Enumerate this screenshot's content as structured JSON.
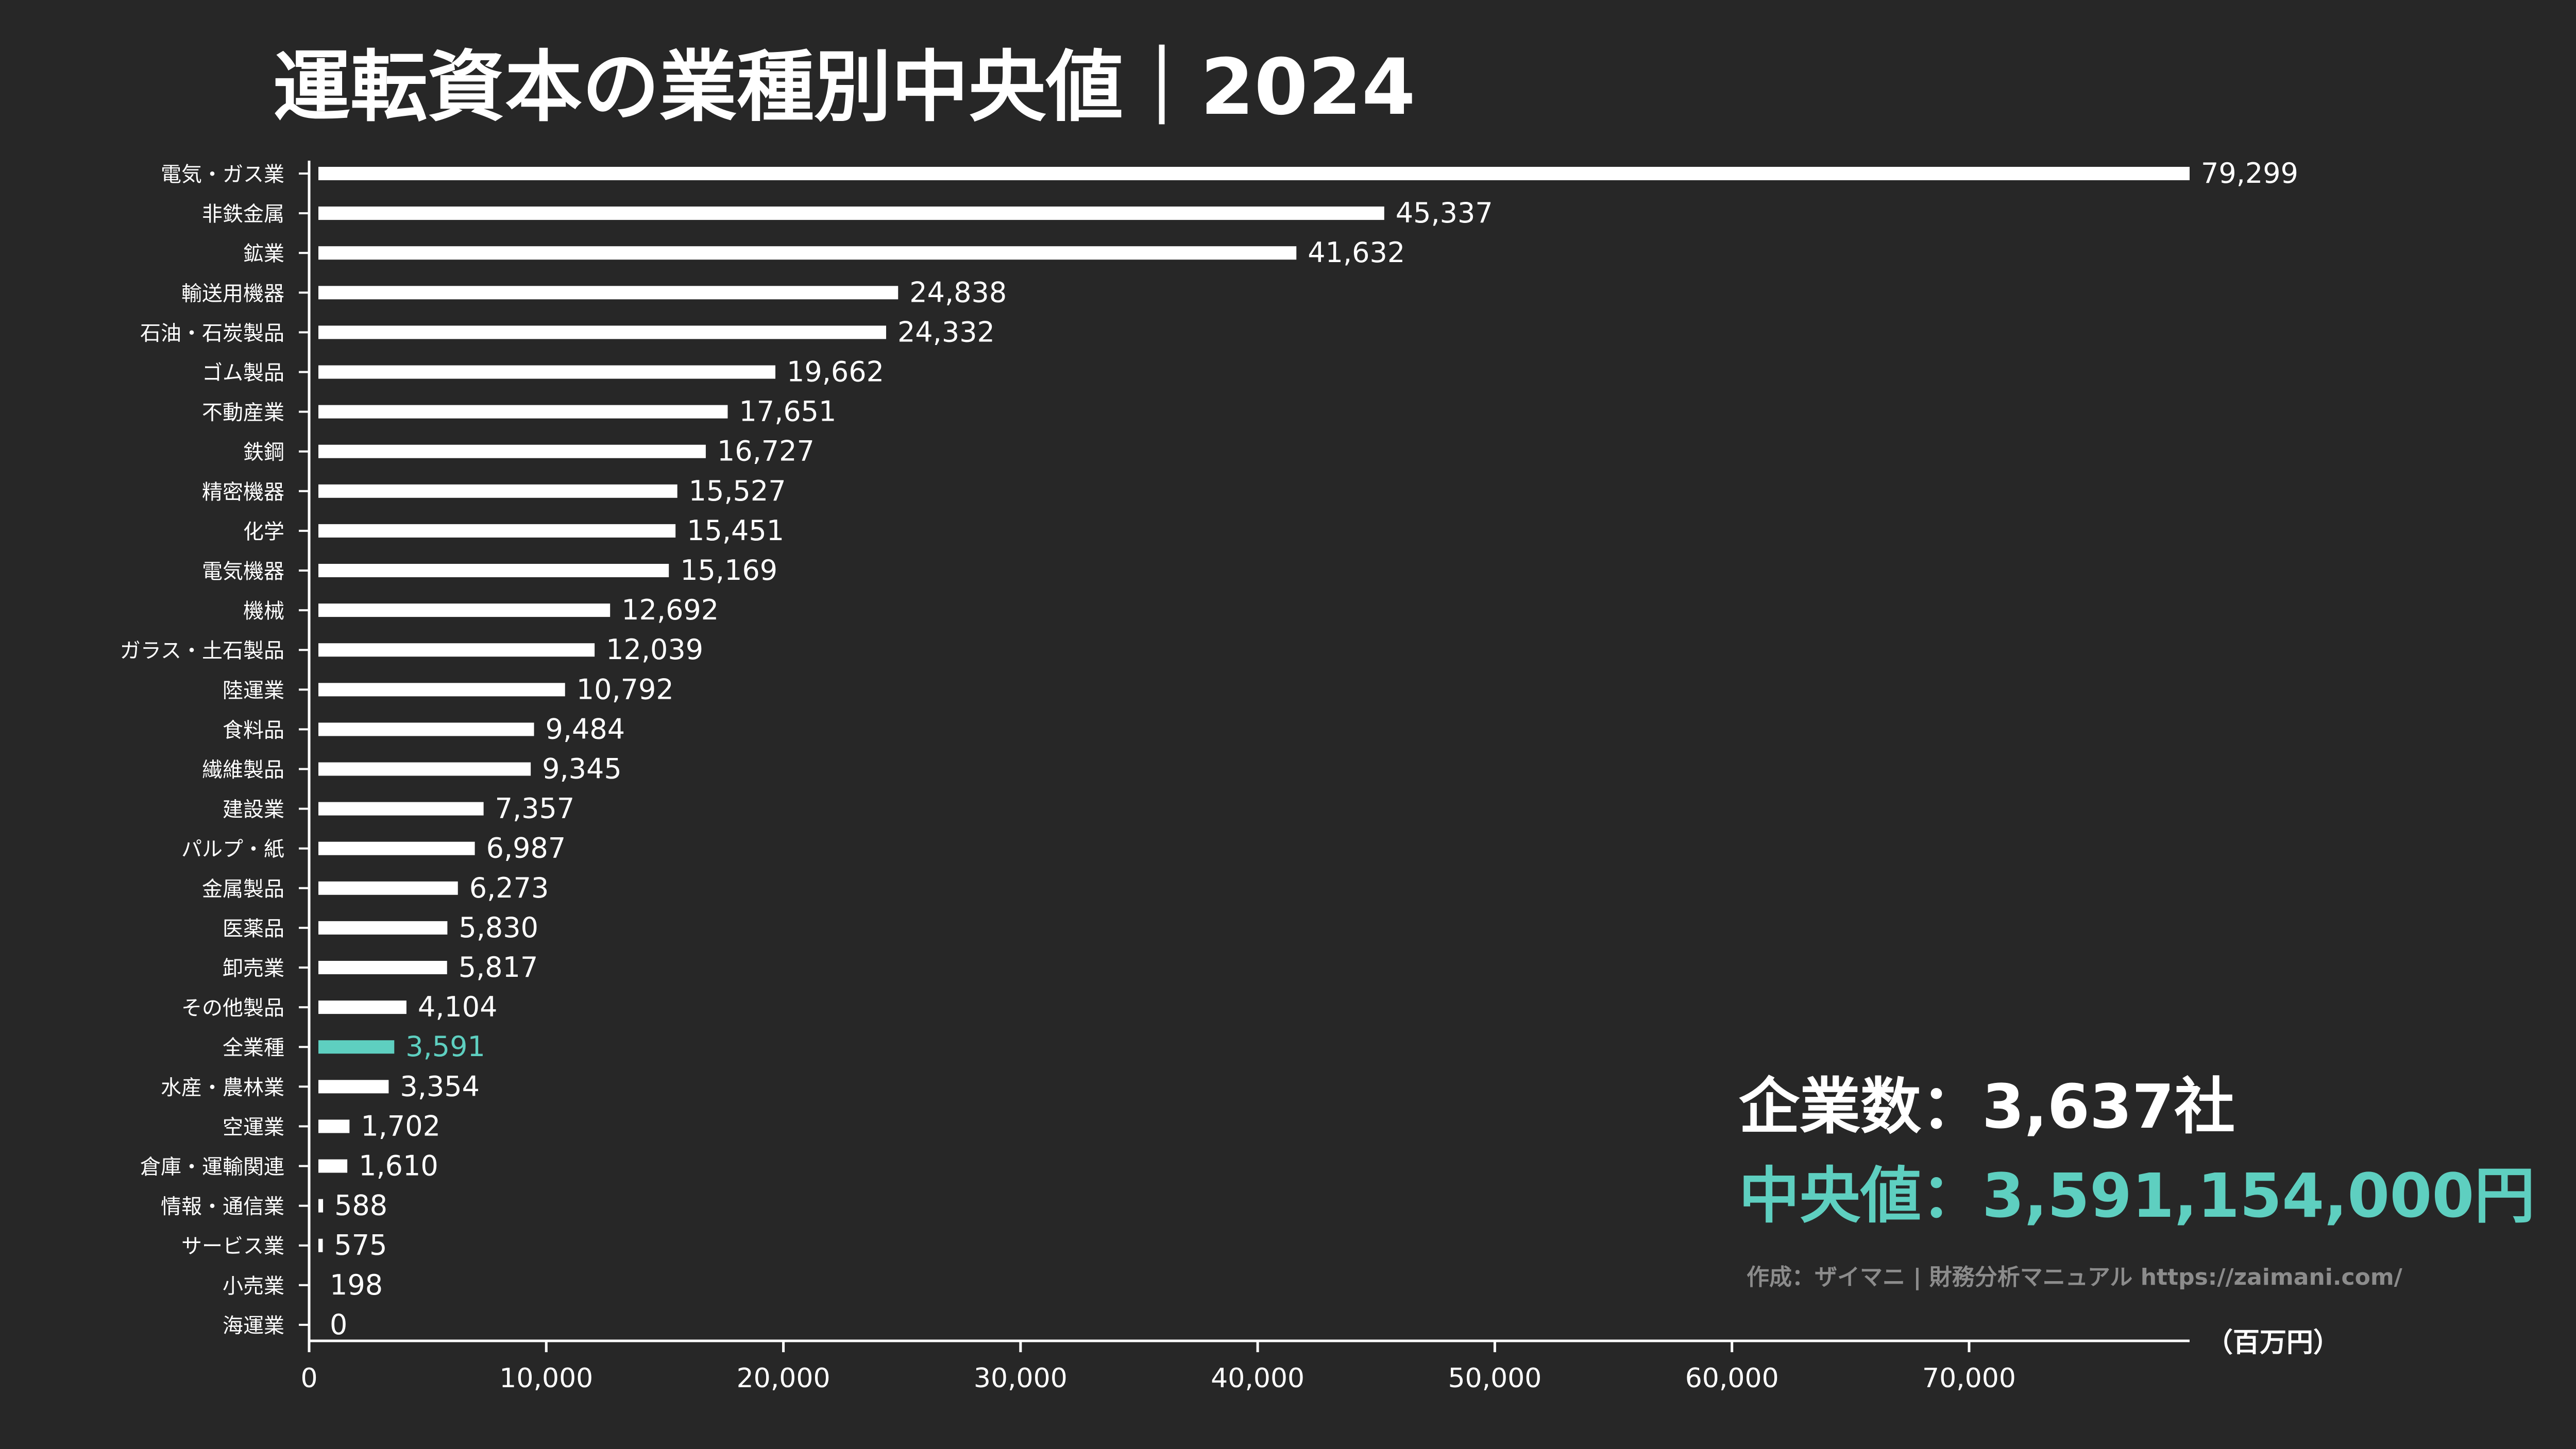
{
  "title": "運転資本の業種別中央値｜2024",
  "stats": {
    "company_count": "企業数：3,637社",
    "median": "中央値：3,591,154,000円"
  },
  "credit": "作成：ザイマニ | 財務分析マニュアル https://zaimani.com/",
  "unit": "（百万円）",
  "colors": {
    "background": "#272727",
    "bar": "#ffffff",
    "highlight": "#5ecfc0",
    "text": "#ffffff",
    "muted": "#8c8c8c"
  },
  "chart_data": {
    "type": "bar",
    "orientation": "horizontal",
    "categories": [
      "電気・ガス業",
      "非鉄金属",
      "鉱業",
      "輸送用機器",
      "石油・石炭製品",
      "ゴム製品",
      "不動産業",
      "鉄鋼",
      "精密機器",
      "化学",
      "電気機器",
      "機械",
      "ガラス・土石製品",
      "陸運業",
      "食料品",
      "繊維製品",
      "建設業",
      "パルプ・紙",
      "金属製品",
      "医薬品",
      "卸売業",
      "その他製品",
      "全業種",
      "水産・農林業",
      "空運業",
      "倉庫・運輸関連",
      "情報・通信業",
      "サービス業",
      "小売業",
      "海運業"
    ],
    "values": [
      79299,
      45337,
      41632,
      24838,
      24332,
      19662,
      17651,
      16727,
      15527,
      15451,
      15169,
      12692,
      12039,
      10792,
      9484,
      9345,
      7357,
      6987,
      6273,
      5830,
      5817,
      4104,
      3591,
      3354,
      1702,
      1610,
      588,
      575,
      198,
      0
    ],
    "value_labels": [
      "79,299",
      "45,337",
      "41,632",
      "24,838",
      "24,332",
      "19,662",
      "17,651",
      "16,727",
      "15,527",
      "15,451",
      "15,169",
      "12,692",
      "12,039",
      "10,792",
      "9,484",
      "9,345",
      "7,357",
      "6,987",
      "6,273",
      "5,830",
      "5,817",
      "4,104",
      "3,591",
      "3,354",
      "1,702",
      "1,610",
      "588",
      "575",
      "198",
      "0"
    ],
    "highlight": "全業種",
    "xlim": [
      0,
      79299
    ],
    "xticks": [
      0,
      10000,
      20000,
      30000,
      40000,
      50000,
      60000,
      70000
    ],
    "xtick_labels": [
      "0",
      "10,000",
      "20,000",
      "30,000",
      "40,000",
      "50,000",
      "60,000",
      "70,000"
    ],
    "grid": false
  }
}
